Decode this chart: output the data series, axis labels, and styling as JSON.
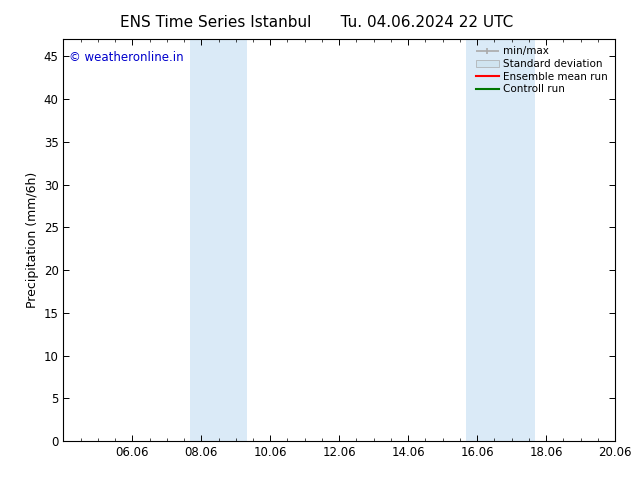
{
  "title_left": "ENS Time Series Istanbul",
  "title_right": "Tu. 04.06.2024 22 UTC",
  "ylabel": "Precipitation (mm/6h)",
  "ylim": [
    0,
    47
  ],
  "yticks": [
    0,
    5,
    10,
    15,
    20,
    25,
    30,
    35,
    40,
    45
  ],
  "xtick_labels": [
    "06.06",
    "08.06",
    "10.06",
    "12.06",
    "14.06",
    "16.06",
    "18.06",
    "20.06"
  ],
  "xtick_positions": [
    2,
    4,
    6,
    8,
    10,
    12,
    14,
    16
  ],
  "xlim": [
    0,
    16
  ],
  "shaded_bands": [
    {
      "x_start": 3.67,
      "x_end": 5.33
    },
    {
      "x_start": 11.67,
      "x_end": 13.67
    }
  ],
  "shade_color": "#daeaf7",
  "watermark_text": "© weatheronline.in",
  "watermark_color": "#0000cc",
  "watermark_fontsize": 8.5,
  "title_fontsize": 11,
  "axis_label_fontsize": 9,
  "tick_fontsize": 8.5,
  "bg_color": "#ffffff",
  "legend_minmax_color": "#aaaaaa",
  "legend_std_facecolor": "#d0e4f0",
  "legend_std_edgecolor": "#aaaaaa",
  "legend_ens_color": "#ff0000",
  "legend_ctrl_color": "#007700"
}
